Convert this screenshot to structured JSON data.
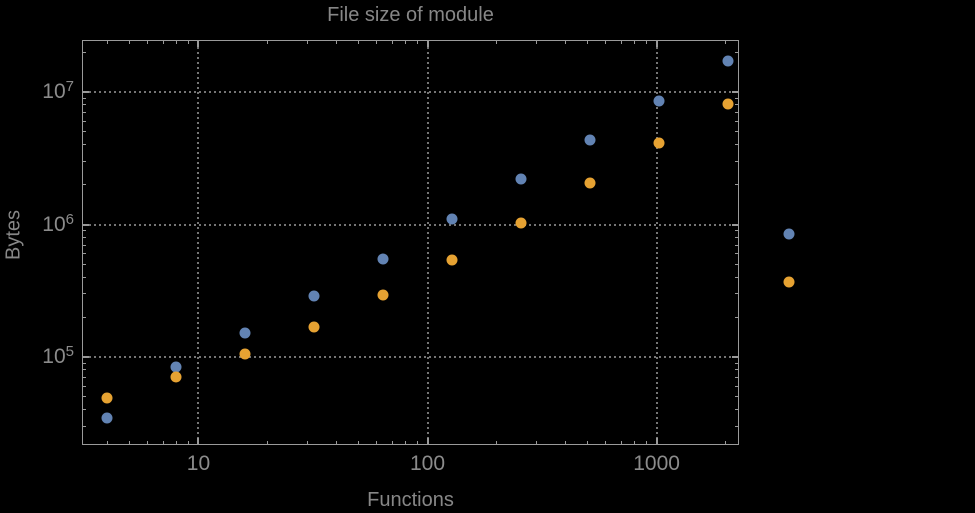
{
  "title": "File size of module",
  "chart_data": {
    "type": "scatter",
    "title": "File size of module",
    "xlabel": "Functions",
    "ylabel": "Bytes",
    "xscale": "log",
    "yscale": "log",
    "xlim": [
      3.1,
      2290
    ],
    "ylim": [
      21700,
      24700000
    ],
    "grid": "dotted-at-decades",
    "legend": "none",
    "colors": {
      "background": "#000000",
      "frame": "#9a9a9a",
      "gridline": "#757575",
      "text": "#878787",
      "series1_blue": "#6283b3",
      "series2_orange": "#e6a232"
    },
    "x_major_ticks": [
      {
        "v": 10,
        "label": "10"
      },
      {
        "v": 100,
        "label": "100"
      },
      {
        "v": 1000,
        "label": "1000"
      }
    ],
    "y_major_ticks": [
      {
        "v": 100000,
        "base": "10",
        "exp": "5"
      },
      {
        "v": 1000000,
        "base": "10",
        "exp": "6"
      },
      {
        "v": 10000000,
        "base": "10",
        "exp": "7"
      }
    ],
    "series": [
      {
        "name": "series-1-blue",
        "color": "#6283b3",
        "points": [
          [
            4,
            34700
          ],
          [
            8,
            84000
          ],
          [
            16,
            152000
          ],
          [
            32,
            289000
          ],
          [
            64,
            550000
          ],
          [
            128,
            1100000
          ],
          [
            256,
            2210000
          ],
          [
            512,
            4350000
          ],
          [
            1024,
            8570000
          ],
          [
            2048,
            17200000
          ],
          [
            3800,
            850000
          ]
        ]
      },
      {
        "name": "series-2-orange",
        "color": "#e6a232",
        "points": [
          [
            4,
            49000
          ],
          [
            8,
            70800
          ],
          [
            16,
            105000
          ],
          [
            32,
            169000
          ],
          [
            64,
            294000
          ],
          [
            128,
            541000
          ],
          [
            256,
            1030000
          ],
          [
            512,
            2060000
          ],
          [
            1024,
            4130000
          ],
          [
            2048,
            8130000
          ],
          [
            3800,
            369000
          ]
        ]
      }
    ]
  }
}
